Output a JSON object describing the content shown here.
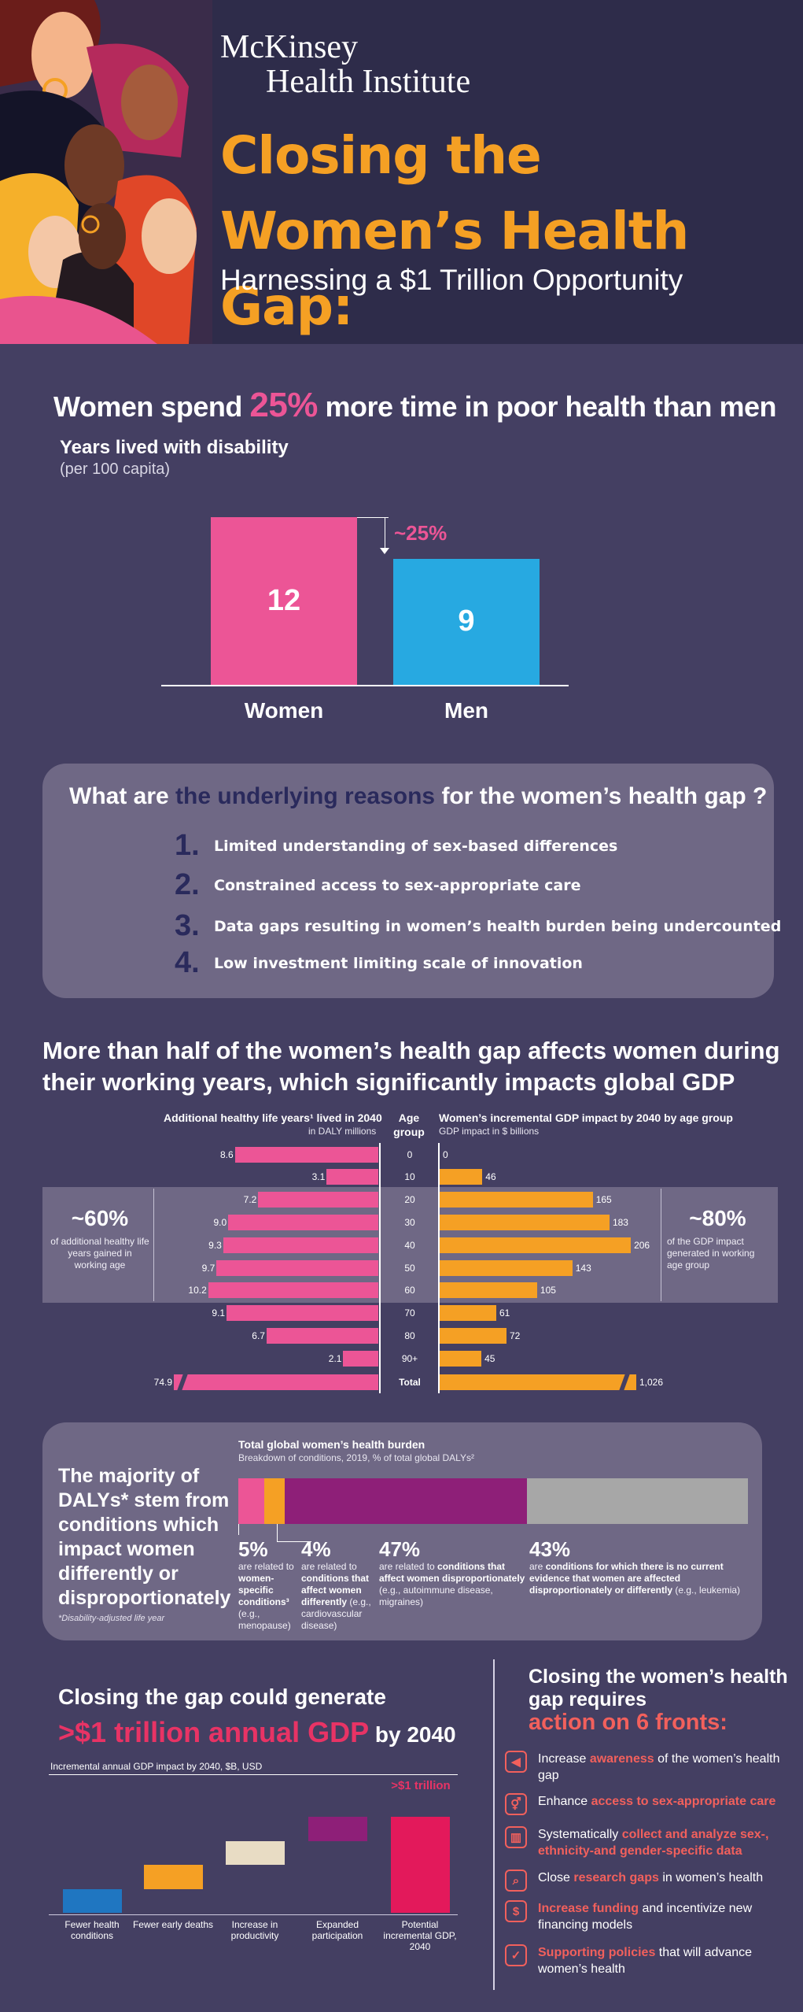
{
  "header": {
    "brand_line1": "McKinsey",
    "brand_line2": "Health Institute",
    "title": "Closing the Women’s Health Gap:",
    "subtitle": "Harnessing a $1 Trillion Opportunity"
  },
  "colors": {
    "pink": "#ec5596",
    "blue": "#27a9e1",
    "orange": "#f5a024",
    "purple": "#8e1f78",
    "gray": "#a7a7a7",
    "navy": "#2a2a5c",
    "crimson": "#e3195b",
    "coral": "#f2605c"
  },
  "disability": {
    "title_pre": "Women spend ",
    "title_pct": "25%",
    "title_post": " more time in poor health than men",
    "chart_label": "Years lived with disability",
    "chart_unit": "(per 100 capita)",
    "diff_label": "~25%"
  },
  "reasons": {
    "title_pre": "What are ",
    "title_hl": "the underlying reasons",
    "title_post": " for the women’s health gap ?",
    "items": [
      {
        "num": "1.",
        "text": "Limited understanding of sex-based differences"
      },
      {
        "num": "2.",
        "text": "Constrained access to sex-appropriate care"
      },
      {
        "num": "3.",
        "text": "Data gaps resulting in women’s health burden being undercounted"
      },
      {
        "num": "4.",
        "text": "Low investment limiting scale of innovation"
      }
    ]
  },
  "working_years": {
    "title": "More than half of the women’s health gap affects women during their working years, which significantly impacts global GDP",
    "left_header": "Additional healthy life years¹ lived in 2040",
    "left_sub": "in DALY millions",
    "mid_header_1": "Age",
    "mid_header_2": "group",
    "right_header": "Women’s incremental GDP impact by 2040 by age group",
    "right_sub": "GDP impact in $ billions",
    "callout_left_big": "~60%",
    "callout_left_text": "of additional healthy life years gained in working age",
    "callout_right_big": "~80%",
    "callout_right_text": "of the GDP impact generated in working age group"
  },
  "burden": {
    "main": "The majority of DALYs* stem from conditions which impact women differently or disproportionately",
    "note": "*Disability-adjusted life year",
    "chart_title": "Total global women’s health burden",
    "chart_sub": "Breakdown of conditions, 2019, % of total global DALYs²",
    "segments": [
      {
        "pct": "5%",
        "desc_pre": "are related to ",
        "desc_b": "women-specific conditions³",
        "desc_post": " (e.g., menopause)"
      },
      {
        "pct": "4%",
        "desc_pre": "are related to ",
        "desc_b": "conditions that affect women differently",
        "desc_post": " (e.g., cardiovascular disease)"
      },
      {
        "pct": "47%",
        "desc_pre": "are related to ",
        "desc_b": "conditions that affect women disproportionately",
        "desc_post": " (e.g., autoimmune disease, migraines)"
      },
      {
        "pct": "43%",
        "desc_pre": "are ",
        "desc_b": "conditions for which there is no current evidence that women are affected disproportionately or differently",
        "desc_post": " (e.g., leukemia)"
      }
    ]
  },
  "gdp": {
    "title": "Closing the gap could generate",
    "big": ">$1 trillion annual GDP",
    "big_post": " by 2040",
    "axis": "Incremental annual GDP impact by 2040, $B, USD",
    "total_label": ">$1 trillion"
  },
  "fronts": {
    "title_1": "Closing the women’s health gap requires",
    "title_2": "action on 6 fronts:",
    "items": [
      {
        "icon": "megaphone-icon",
        "glyph": "◀",
        "pre": "Increase ",
        "b": "awareness",
        "post": " of the women’s health gap"
      },
      {
        "icon": "gender-icon",
        "glyph": "⚥",
        "pre": "Enhance ",
        "b": "access to sex-appropriate care",
        "post": ""
      },
      {
        "icon": "data-icon",
        "glyph": "▥",
        "pre": "Systematically ",
        "b": "collect and analyze sex-, ethnicity-and gender-specific data",
        "post": ""
      },
      {
        "icon": "microscope-icon",
        "glyph": "⌕",
        "pre": "Close ",
        "b": "research gaps",
        "post": " in women’s health"
      },
      {
        "icon": "money-icon",
        "glyph": "$",
        "pre": "",
        "b": "Increase funding",
        "post": " and incentivize new financing models"
      },
      {
        "icon": "policy-icon",
        "glyph": "✓",
        "pre": "",
        "b": "Supporting policies",
        "post": " that will advance women’s health"
      }
    ]
  },
  "chart_data": [
    {
      "type": "bar",
      "categories": [
        "Women",
        "Men"
      ],
      "values": [
        12,
        9
      ]
    },
    {
      "type": "bar",
      "categories": [
        "0",
        "10",
        "20",
        "30",
        "40",
        "50",
        "60",
        "70",
        "80",
        "90+",
        "Total"
      ],
      "series": [
        {
          "values": [
            8.6,
            3.1,
            7.2,
            9.0,
            9.3,
            9.7,
            10.2,
            9.1,
            6.7,
            2.1,
            74.9
          ]
        },
        {
          "values": [
            0,
            46,
            165,
            183,
            206,
            143,
            105,
            61,
            72,
            45,
            1026
          ]
        }
      ],
      "value_labels": {
        "left": [
          "8.6",
          "3.1",
          "7.2",
          "9.0",
          "9.3",
          "9.7",
          "10.2",
          "9.1",
          "6.7",
          "2.1",
          "74.9"
        ],
        "right": [
          "0",
          "46",
          "165",
          "183",
          "206",
          "143",
          "105",
          "61",
          "72",
          "45",
          "1,026"
        ]
      }
    },
    {
      "type": "bar",
      "categories": [
        "Women-specific",
        "Affect differently",
        "Affect disproportionately",
        "No current evidence"
      ],
      "values": [
        5,
        4,
        47,
        43
      ]
    },
    {
      "type": "bar",
      "categories": [
        "Fewer health conditions",
        "Fewer early deaths",
        "Increase in productivity",
        "Expanded participation",
        "Potential incremental GDP, 2040"
      ],
      "values": [
        1,
        1,
        1,
        1,
        4
      ]
    }
  ]
}
